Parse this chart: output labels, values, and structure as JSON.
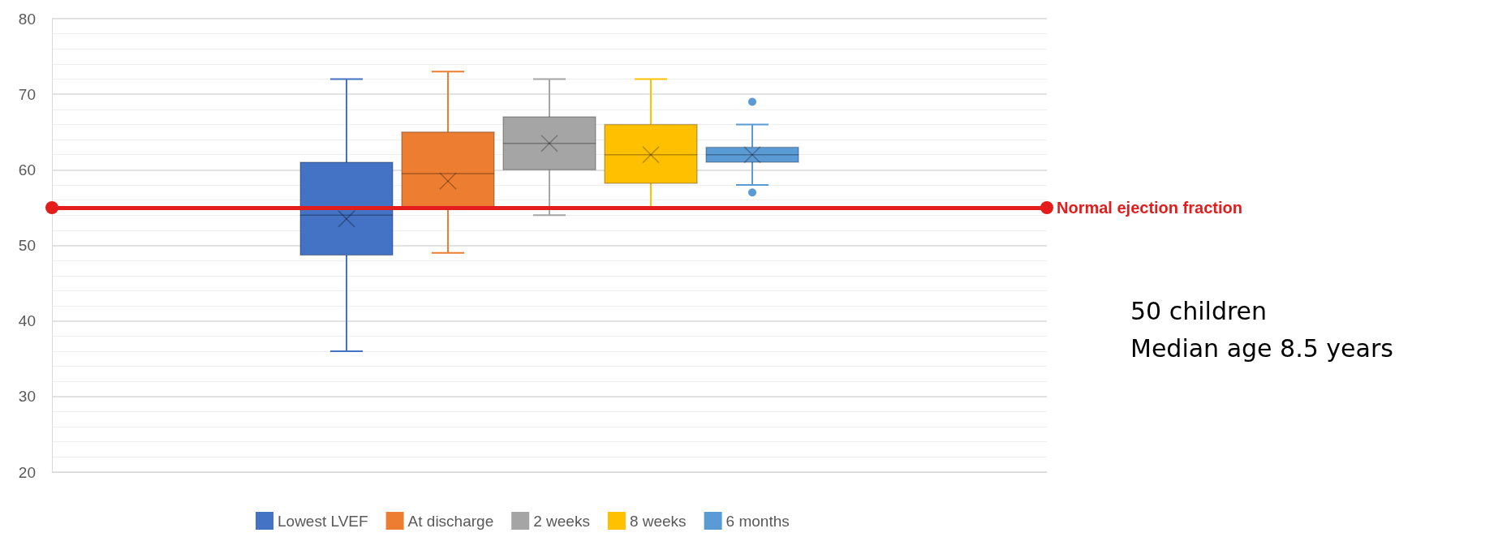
{
  "chart_data": {
    "type": "box",
    "categories": [
      null
    ],
    "series": [
      {
        "name": "Lowest LVEF",
        "color": "#4472c4",
        "boxes": [
          {
            "low": 36,
            "q1": 48.7,
            "median": 54,
            "q3": 61,
            "high": 72,
            "mean": 53.5
          }
        ]
      },
      {
        "name": "At discharge",
        "color": "#ed7d31",
        "boxes": [
          {
            "low": 49,
            "q1": 55,
            "median": 59.5,
            "q3": 65,
            "high": 73,
            "mean": 58.5
          }
        ]
      },
      {
        "name": "2 weeks",
        "color": "#a5a5a5",
        "boxes": [
          {
            "low": 54,
            "q1": 60,
            "median": 63.5,
            "q3": 67,
            "high": 72,
            "mean": 63.5
          }
        ]
      },
      {
        "name": "8 weeks",
        "color": "#ffc000",
        "boxes": [
          {
            "low": 55,
            "q1": 58.2,
            "median": 62,
            "q3": 66,
            "high": 72,
            "mean": 62
          }
        ]
      },
      {
        "name": "6 months",
        "color": "#5b9bd5",
        "boxes": [
          {
            "low": 58,
            "q1": 61,
            "median": 62,
            "q3": 63,
            "high": 66,
            "mean": 62,
            "outliers": [
              69,
              57
            ]
          }
        ]
      }
    ],
    "ylim": [
      20,
      80
    ],
    "yticks": [
      20,
      30,
      40,
      50,
      60,
      70,
      80
    ],
    "grid": "y",
    "legend": "bottom",
    "ref_lines": [
      {
        "axis": "y",
        "value": 55,
        "label": "Normal ejection fraction",
        "color": "#e31c1c",
        "line_style": "solid"
      }
    ],
    "annotations": [
      "50 children",
      "Median age 8.5 years"
    ]
  }
}
